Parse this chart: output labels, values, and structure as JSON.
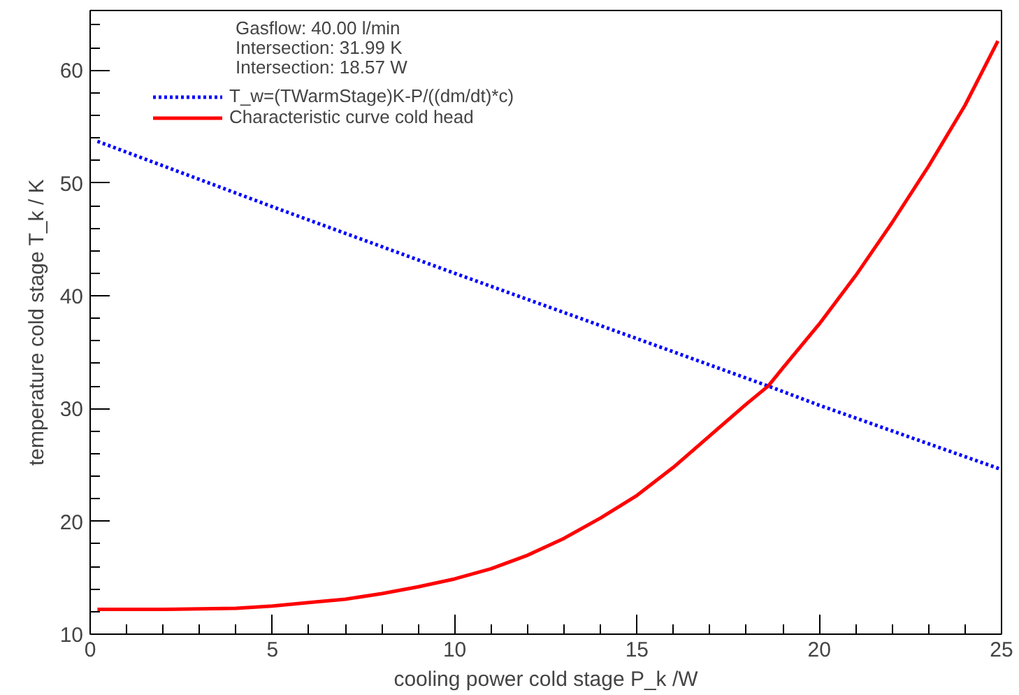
{
  "chart_data": {
    "type": "line",
    "xlabel": "cooling power cold stage P_k /W",
    "ylabel": "temperature cold stage T_k / K",
    "annotations": [
      "Gasflow: 40.00 l/min",
      "Intersection: 31.99 K",
      "Intersection: 18.57 W"
    ],
    "xlim": [
      0,
      25
    ],
    "ylim": [
      10,
      65.3
    ],
    "xticks": [
      0,
      5,
      10,
      15,
      20,
      25
    ],
    "yticks": [
      10,
      20,
      30,
      40,
      50,
      60
    ],
    "grid": false,
    "legend": "top left",
    "series": [
      {
        "name": "T_w=(TWarmStage)K-P/((dm/dt)*c)",
        "color": "#0000ff",
        "line_style": "dotted",
        "x": [
          0.2,
          5,
          10,
          15,
          18.6,
          20,
          25
        ],
        "values": [
          53.7,
          47.9,
          42.0,
          36.2,
          32.0,
          30.3,
          24.6
        ]
      },
      {
        "name": "Characteristic curve cold head",
        "color": "#ff0000",
        "line_style": "solid",
        "x": [
          0.2,
          2,
          4,
          5,
          6,
          7,
          8,
          9,
          10,
          11,
          12,
          13,
          14,
          15,
          16,
          17,
          18,
          18.6,
          19,
          20,
          21,
          22,
          23,
          24,
          24.9
        ],
        "values": [
          12.2,
          12.2,
          12.3,
          12.5,
          12.8,
          13.1,
          13.6,
          14.2,
          14.9,
          15.8,
          17.0,
          18.5,
          20.3,
          22.3,
          24.8,
          27.6,
          30.4,
          32.0,
          33.6,
          37.5,
          41.8,
          46.5,
          51.5,
          56.9,
          62.6
        ]
      }
    ]
  }
}
